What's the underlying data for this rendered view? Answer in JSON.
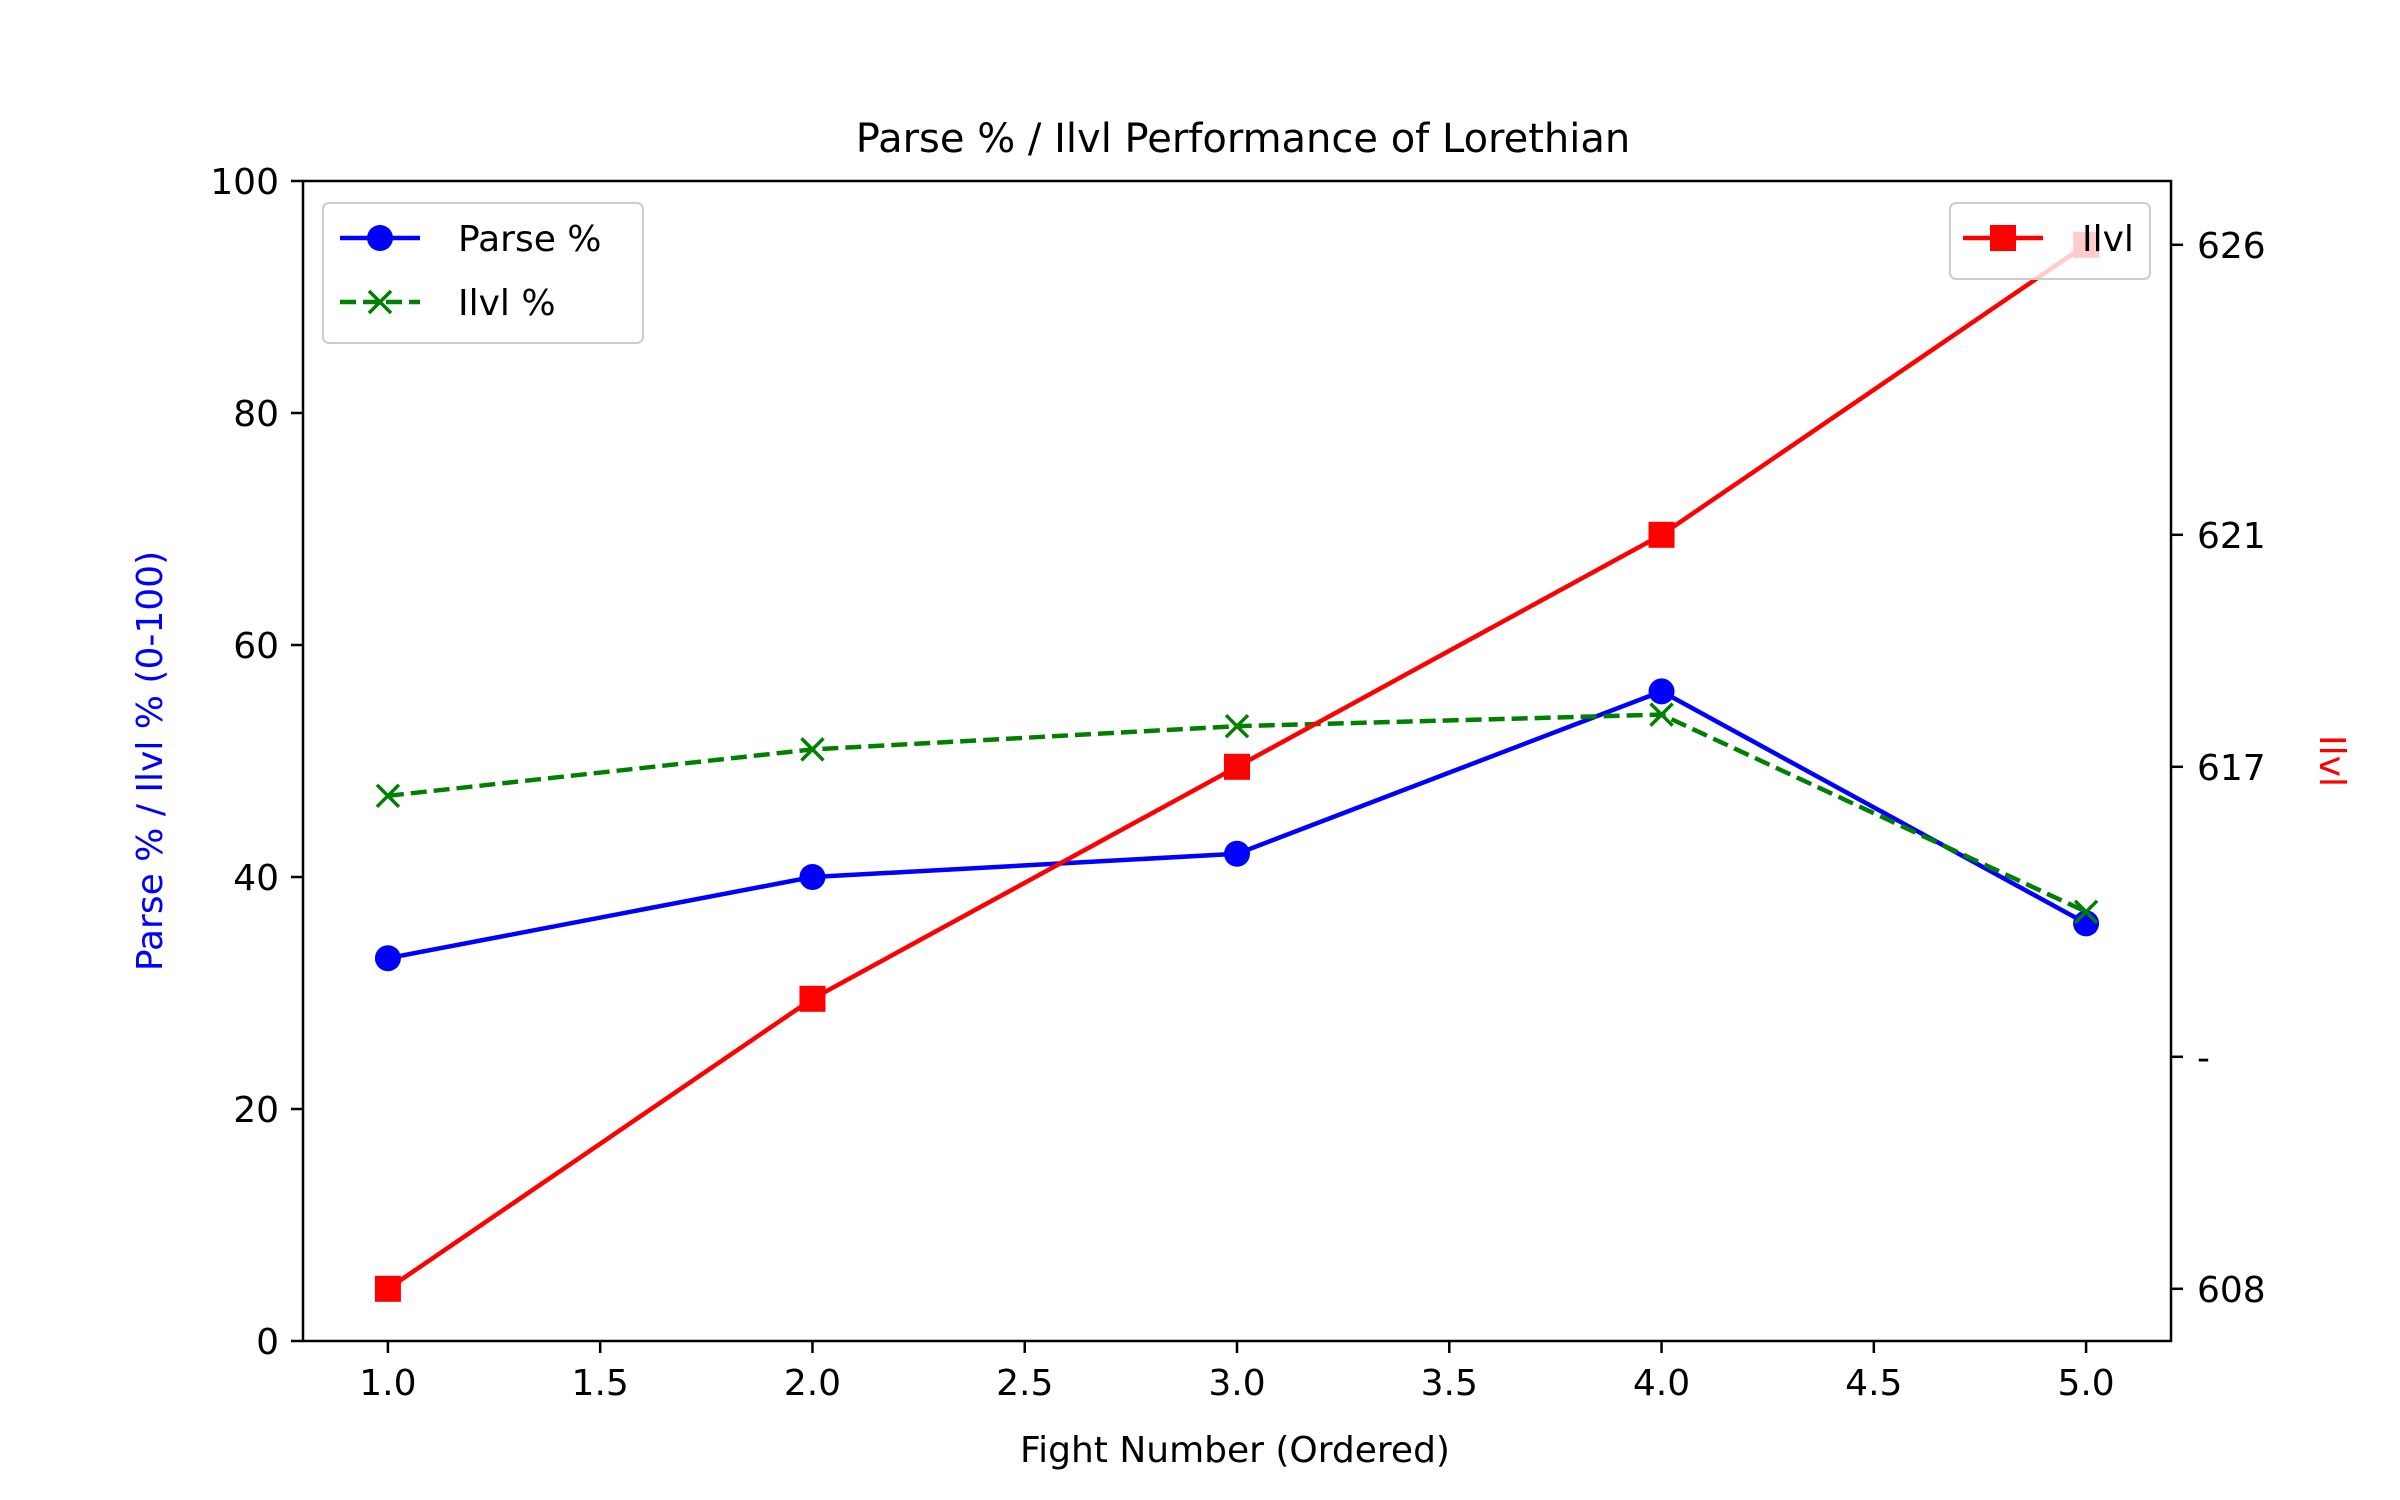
{
  "chart_data": {
    "type": "line",
    "title": "Parse % / Ilvl Performance of Lorethian",
    "xlabel": "Fight Number (Ordered)",
    "ylabel": "Parse % / Ilvl % (0-100)",
    "ylabel_right": "Ilvl",
    "xlim": [
      0.8,
      5.2
    ],
    "ylim": [
      0,
      100
    ],
    "ylim_right": [
      607.1,
      627.1
    ],
    "x_ticks": [
      "1.0",
      "1.5",
      "2.0",
      "2.5",
      "3.0",
      "3.5",
      "4.0",
      "4.5",
      "5.0"
    ],
    "y_ticks": [
      "0",
      "20",
      "40",
      "60",
      "80",
      "100"
    ],
    "y_right_ticks": [
      {
        "value": 608,
        "label": "608"
      },
      {
        "value": 612,
        "label": "-"
      },
      {
        "value": 617,
        "label": "617"
      },
      {
        "value": 621,
        "label": "621"
      },
      {
        "value": 626,
        "label": "626"
      }
    ],
    "x": [
      1,
      2,
      3,
      4,
      5
    ],
    "series": [
      {
        "name": "Parse %",
        "axis": "left",
        "color": "#0000ff",
        "marker": "circle",
        "dash": "solid",
        "values": [
          33,
          40,
          42,
          56,
          36
        ]
      },
      {
        "name": "Ilvl %",
        "axis": "left",
        "color": "#008000",
        "marker": "x",
        "dash": "dashed",
        "values": [
          47,
          51,
          53,
          54,
          37
        ]
      },
      {
        "name": "Ilvl",
        "axis": "right",
        "color": "#ff0000",
        "marker": "square",
        "dash": "solid",
        "values": [
          608,
          613,
          617,
          621,
          626
        ]
      }
    ],
    "legend_left": "top-left",
    "legend_right": "top-right",
    "grid": false
  }
}
